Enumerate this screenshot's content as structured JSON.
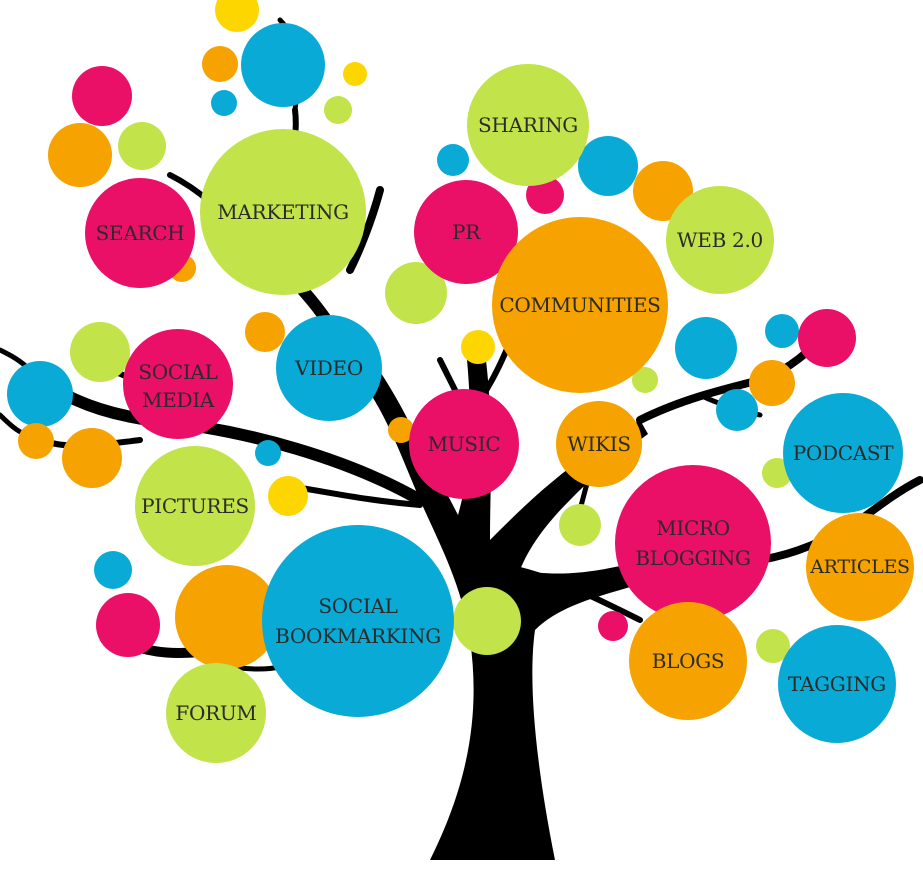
{
  "colors": {
    "pink": "#ea1068",
    "orange": "#f6a200",
    "green": "#c2e34a",
    "blue": "#0aaad6",
    "yellow": "#fdd600",
    "trunk": "#000000",
    "label": "#2b2b2b"
  },
  "labels": {
    "sharing": "SHARING",
    "marketing": "MARKETING",
    "search": "SEARCH",
    "pr": "PR",
    "web20": "WEB 2.0",
    "communities": "COMMUNITIES",
    "social_media_line1": "SOCIAL",
    "social_media_line2": "MEDIA",
    "video": "VIDEO",
    "music": "MUSIC",
    "wikis": "WIKIS",
    "podcast": "PODCAST",
    "pictures": "PICTURES",
    "micro_blogging_line1": "MICRO",
    "micro_blogging_line2": "BLOGGING",
    "articles": "ARTICLES",
    "social_bookmarking_line1": "SOCIAL",
    "social_bookmarking_line2": "BOOKMARKING",
    "blogs": "BLOGS",
    "tagging": "TAGGING",
    "forum": "FORUM"
  }
}
